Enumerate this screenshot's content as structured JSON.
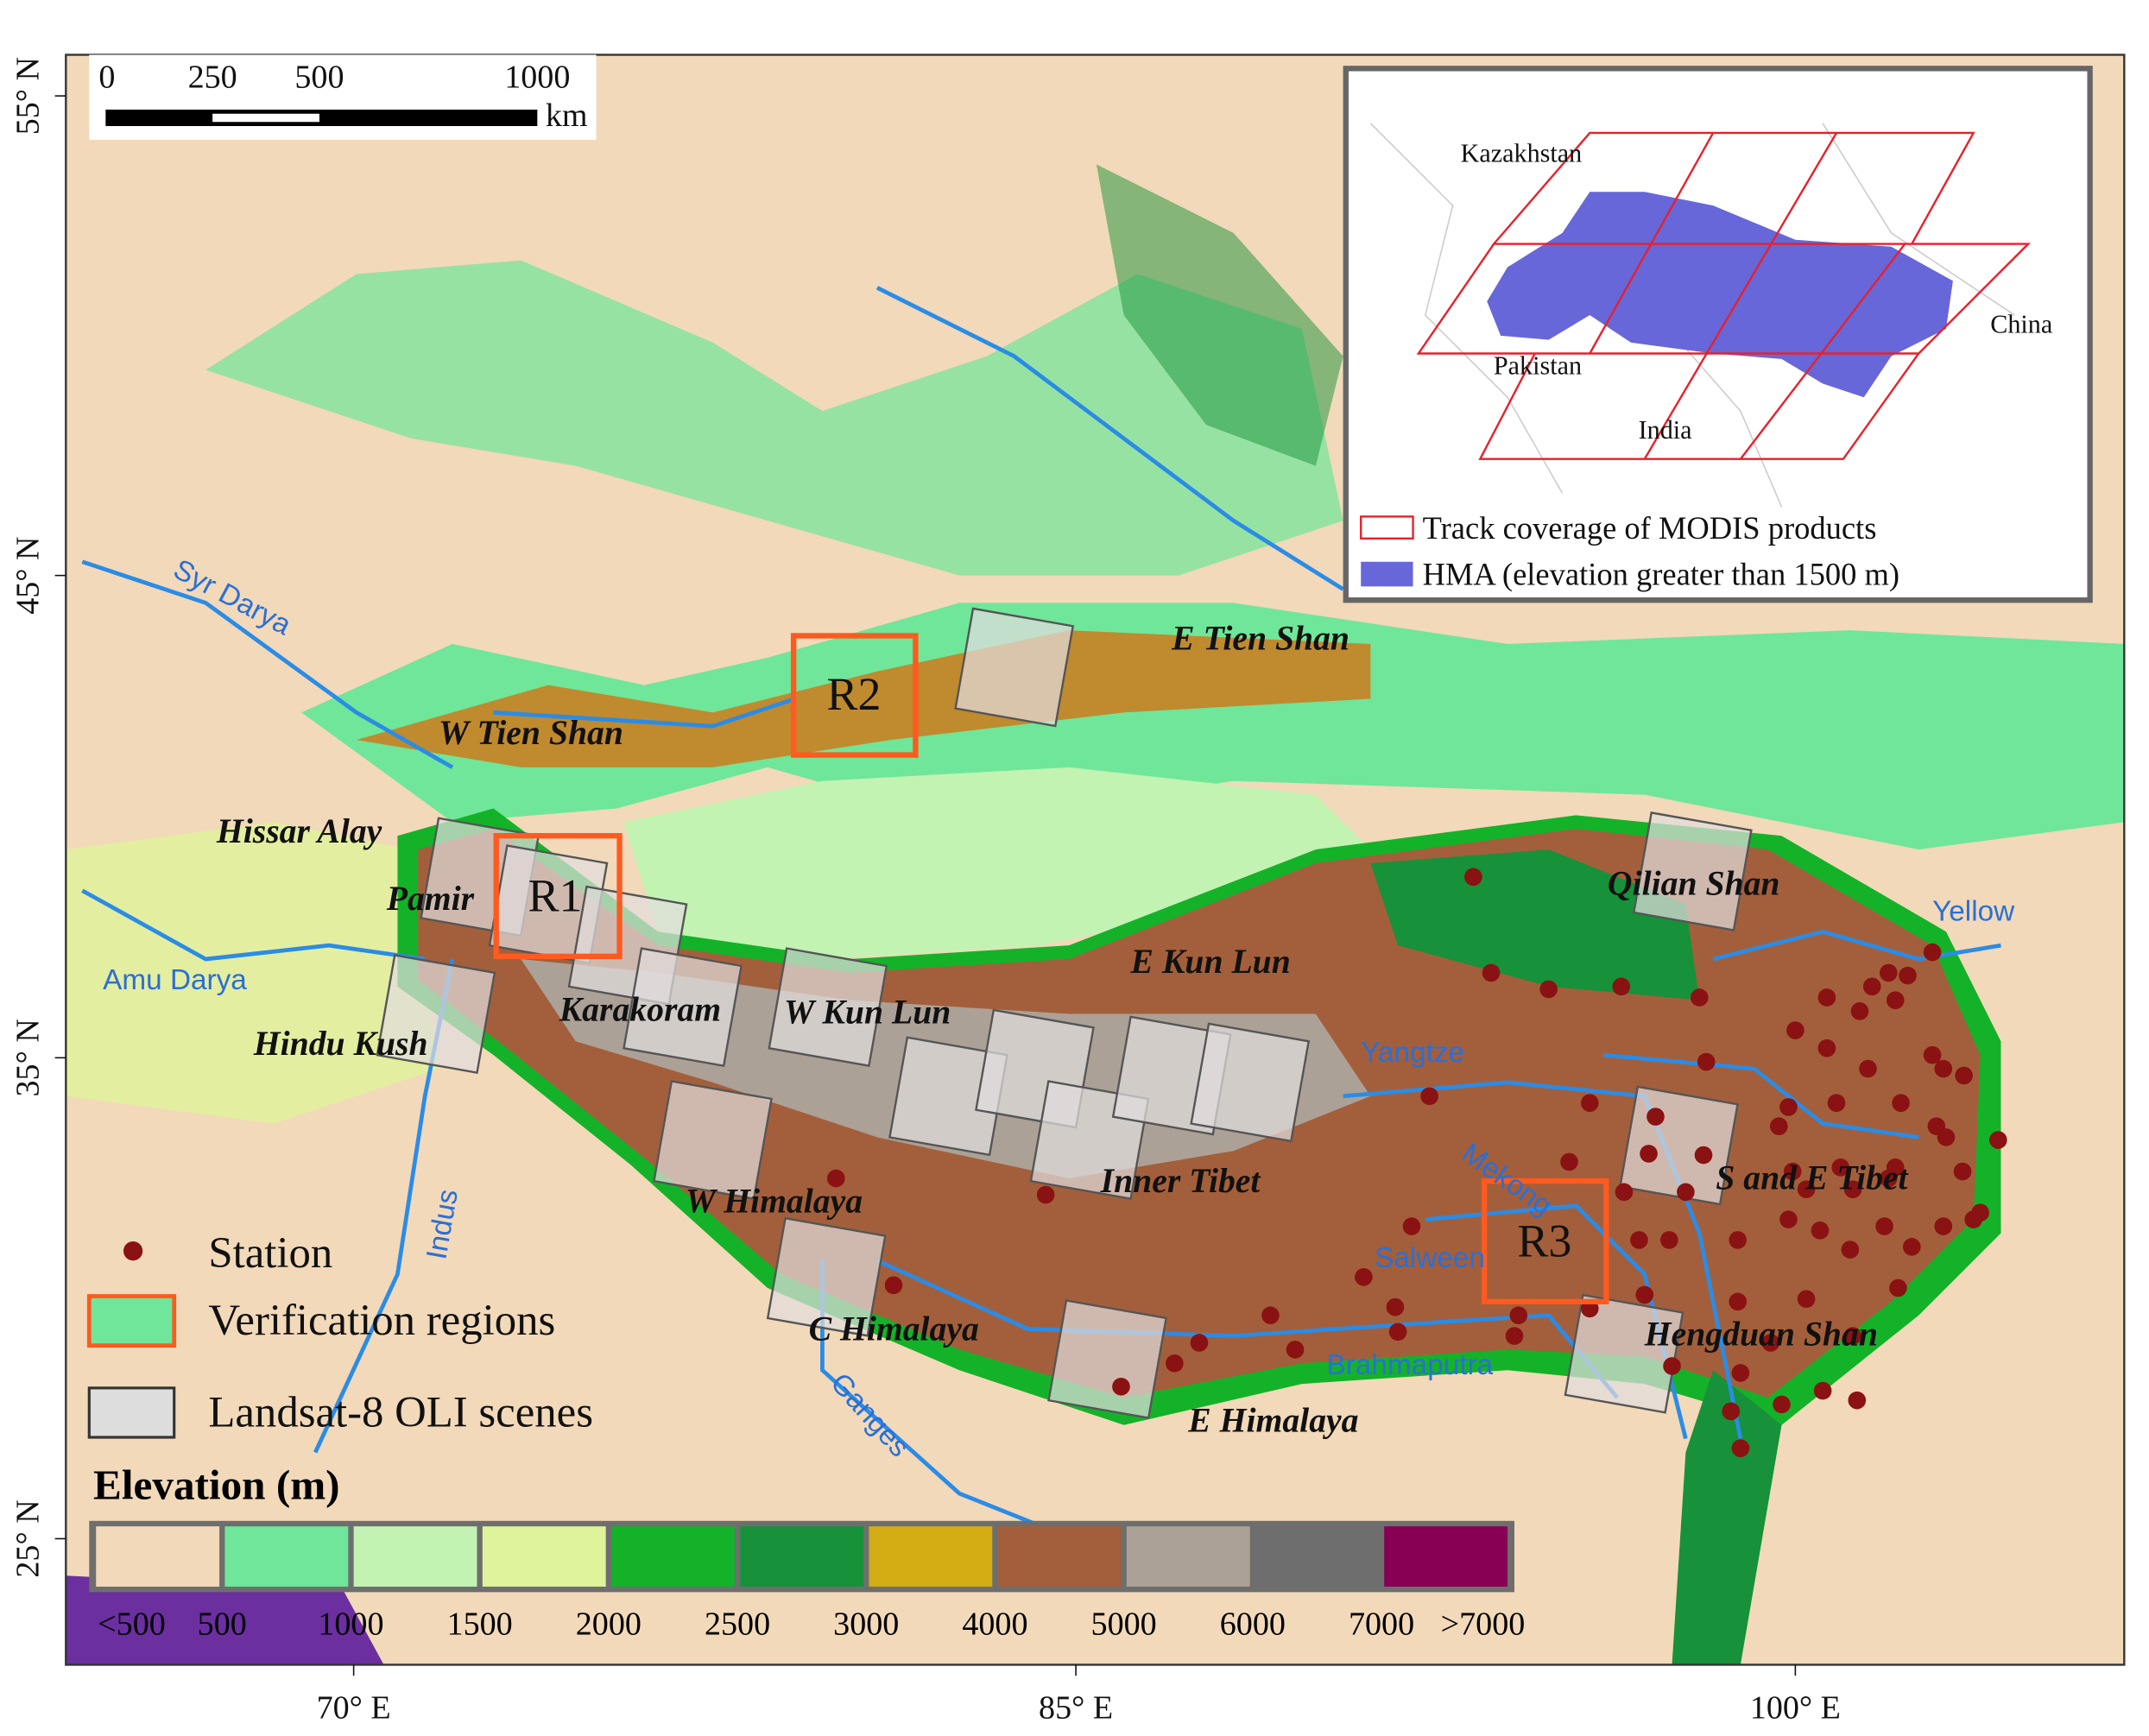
{
  "axes": {
    "lat_labels": [
      "55° N",
      "45° N",
      "35° N",
      "25° N"
    ],
    "lon_labels": [
      "70° E",
      "85° E",
      "100° E"
    ]
  },
  "scale_bar": {
    "labels": [
      "0",
      "250",
      "500",
      "1000"
    ],
    "unit": "km"
  },
  "inset": {
    "countries": [
      "Kazakhstan",
      "China",
      "Pakistan",
      "India"
    ],
    "legend": [
      "Track coverage of MODIS products",
      "HMA (elevation greater than 1500 m)"
    ]
  },
  "legend": {
    "items": [
      "Station",
      "Verification regions",
      "Landsat-8 OLI scenes"
    ],
    "elevation_title": "Elevation (m)",
    "elevation_colors": [
      "#f2d9b9",
      "#6fe699",
      "#c2f3b3",
      "#def39a",
      "#14b229",
      "#17913a",
      "#d2ad13",
      "#a35f3b",
      "#aca197",
      "#6e6e6e",
      "#870054"
    ],
    "elevation_labels": [
      "<500",
      "500",
      "1000",
      "1500",
      "2000",
      "2500",
      "3000",
      "4000",
      "5000",
      "6000",
      "7000",
      ">7000"
    ]
  },
  "regions": [
    "R1",
    "R2",
    "R3"
  ],
  "mountains": [
    "E Tien Shan",
    "W Tien Shan",
    "Hissar Alay",
    "Pamir",
    "Hindu Kush",
    "Karakoram",
    "W Kun Lun",
    "E Kun Lun",
    "Qilian Shan",
    "Inner Tibet",
    "W Himalaya",
    "C Himalaya",
    "E Himalaya",
    "S and E Tibet",
    "Hengduan Shan"
  ],
  "rivers": [
    "Syr Darya",
    "Amu Darya",
    "Indus",
    "Ganges",
    "Brahmaputra",
    "Salween",
    "Mekong",
    "Yangtze",
    "Yellow"
  ]
}
